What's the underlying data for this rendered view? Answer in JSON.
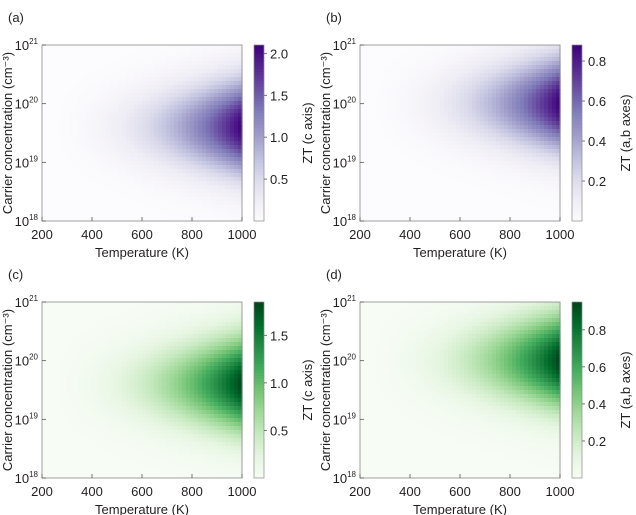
{
  "chart_data": [
    {
      "type": "heatmap",
      "panel_label": "(a)",
      "xlabel": "Temperature (K)",
      "ylabel": "Carrier concentration (cm⁻³)",
      "x_ticks": [
        "200",
        "400",
        "600",
        "800",
        "1000"
      ],
      "x_tick_values": [
        200,
        400,
        600,
        800,
        1000
      ],
      "xlim": [
        200,
        1000
      ],
      "y_scale": "log",
      "ylim": [
        1e+18,
        1e+21
      ],
      "y_tick_values": [
        1e+18,
        1e+19,
        1e+20,
        1e+21
      ],
      "y_ticks": [
        {
          "base": "10",
          "exp": "18"
        },
        {
          "base": "10",
          "exp": "19"
        },
        {
          "base": "10",
          "exp": "20"
        },
        {
          "base": "10",
          "exp": "21"
        }
      ],
      "colorbar_label": "ZT (c axis)",
      "colorbar_ticks": [
        "0.5",
        "1.0",
        "1.5",
        "2.0"
      ],
      "colorbar_tick_values": [
        0.5,
        1.0,
        1.5,
        2.0
      ],
      "z_range": [
        0,
        2.1
      ],
      "colormap": [
        "#fcfbfd",
        "#efedf5",
        "#dadaeb",
        "#bcbddc",
        "#9e9ac8",
        "#807dba",
        "#6a51a3",
        "#54278f",
        "#3f007d"
      ],
      "peak": {
        "temperature": 1000,
        "carrier_concentration": 4e+19,
        "zt": 2.1
      }
    },
    {
      "type": "heatmap",
      "panel_label": "(b)",
      "xlabel": "Temperature (K)",
      "ylabel": "Carrier concentration (cm⁻³)",
      "x_ticks": [
        "200",
        "400",
        "600",
        "800",
        "1000"
      ],
      "x_tick_values": [
        200,
        400,
        600,
        800,
        1000
      ],
      "xlim": [
        200,
        1000
      ],
      "y_scale": "log",
      "ylim": [
        1e+18,
        1e+21
      ],
      "y_tick_values": [
        1e+18,
        1e+19,
        1e+20,
        1e+21
      ],
      "y_ticks": [
        {
          "base": "10",
          "exp": "18"
        },
        {
          "base": "10",
          "exp": "19"
        },
        {
          "base": "10",
          "exp": "20"
        },
        {
          "base": "10",
          "exp": "21"
        }
      ],
      "colorbar_label": "ZT (a,b axes)",
      "colorbar_ticks": [
        "0.2",
        "0.4",
        "0.6",
        "0.8"
      ],
      "colorbar_tick_values": [
        0.2,
        0.4,
        0.6,
        0.8
      ],
      "z_range": [
        0,
        0.88
      ],
      "colormap": [
        "#fcfbfd",
        "#efedf5",
        "#dadaeb",
        "#bcbddc",
        "#9e9ac8",
        "#807dba",
        "#6a51a3",
        "#54278f",
        "#3f007d"
      ],
      "peak": {
        "temperature": 1000,
        "carrier_concentration": 1e+20,
        "zt": 0.88
      }
    },
    {
      "type": "heatmap",
      "panel_label": "(c)",
      "xlabel": "Temperature (K)",
      "ylabel": "Carrier concentration (cm⁻³)",
      "x_ticks": [
        "200",
        "400",
        "600",
        "800",
        "1000"
      ],
      "x_tick_values": [
        200,
        400,
        600,
        800,
        1000
      ],
      "xlim": [
        200,
        1000
      ],
      "y_scale": "log",
      "ylim": [
        1e+18,
        1e+21
      ],
      "y_tick_values": [
        1e+18,
        1e+19,
        1e+20,
        1e+21
      ],
      "y_ticks": [
        {
          "base": "10",
          "exp": "18"
        },
        {
          "base": "10",
          "exp": "19"
        },
        {
          "base": "10",
          "exp": "20"
        },
        {
          "base": "10",
          "exp": "21"
        }
      ],
      "colorbar_label": "ZT (c axis)",
      "colorbar_ticks": [
        "0.5",
        "1.0",
        "1.5"
      ],
      "colorbar_tick_values": [
        0.5,
        1.0,
        1.5
      ],
      "z_range": [
        0,
        1.85
      ],
      "colormap": [
        "#f7fcf5",
        "#e5f5e0",
        "#c7e9c0",
        "#a1d99b",
        "#74c476",
        "#41ab5d",
        "#238b45",
        "#006d2c",
        "#00441b"
      ],
      "peak": {
        "temperature": 1000,
        "carrier_concentration": 4e+19,
        "zt": 1.85
      }
    },
    {
      "type": "heatmap",
      "panel_label": "(d)",
      "xlabel": "Temperature (K)",
      "ylabel": "Carrier concentration (cm⁻³)",
      "x_ticks": [
        "200",
        "400",
        "600",
        "800",
        "1000"
      ],
      "x_tick_values": [
        200,
        400,
        600,
        800,
        1000
      ],
      "xlim": [
        200,
        1000
      ],
      "y_scale": "log",
      "ylim": [
        1e+18,
        1e+21
      ],
      "y_tick_values": [
        1e+18,
        1e+19,
        1e+20,
        1e+21
      ],
      "y_ticks": [
        {
          "base": "10",
          "exp": "18"
        },
        {
          "base": "10",
          "exp": "19"
        },
        {
          "base": "10",
          "exp": "20"
        },
        {
          "base": "10",
          "exp": "21"
        }
      ],
      "colorbar_label": "ZT (a,b axes)",
      "colorbar_ticks": [
        "0.2",
        "0.4",
        "0.6",
        "0.8"
      ],
      "colorbar_tick_values": [
        0.2,
        0.4,
        0.6,
        0.8
      ],
      "z_range": [
        0,
        0.95
      ],
      "colormap": [
        "#f7fcf5",
        "#e5f5e0",
        "#c7e9c0",
        "#a1d99b",
        "#74c476",
        "#41ab5d",
        "#238b45",
        "#006d2c",
        "#00441b"
      ],
      "peak": {
        "temperature": 1000,
        "carrier_concentration": 1e+20,
        "zt": 0.95
      }
    }
  ]
}
